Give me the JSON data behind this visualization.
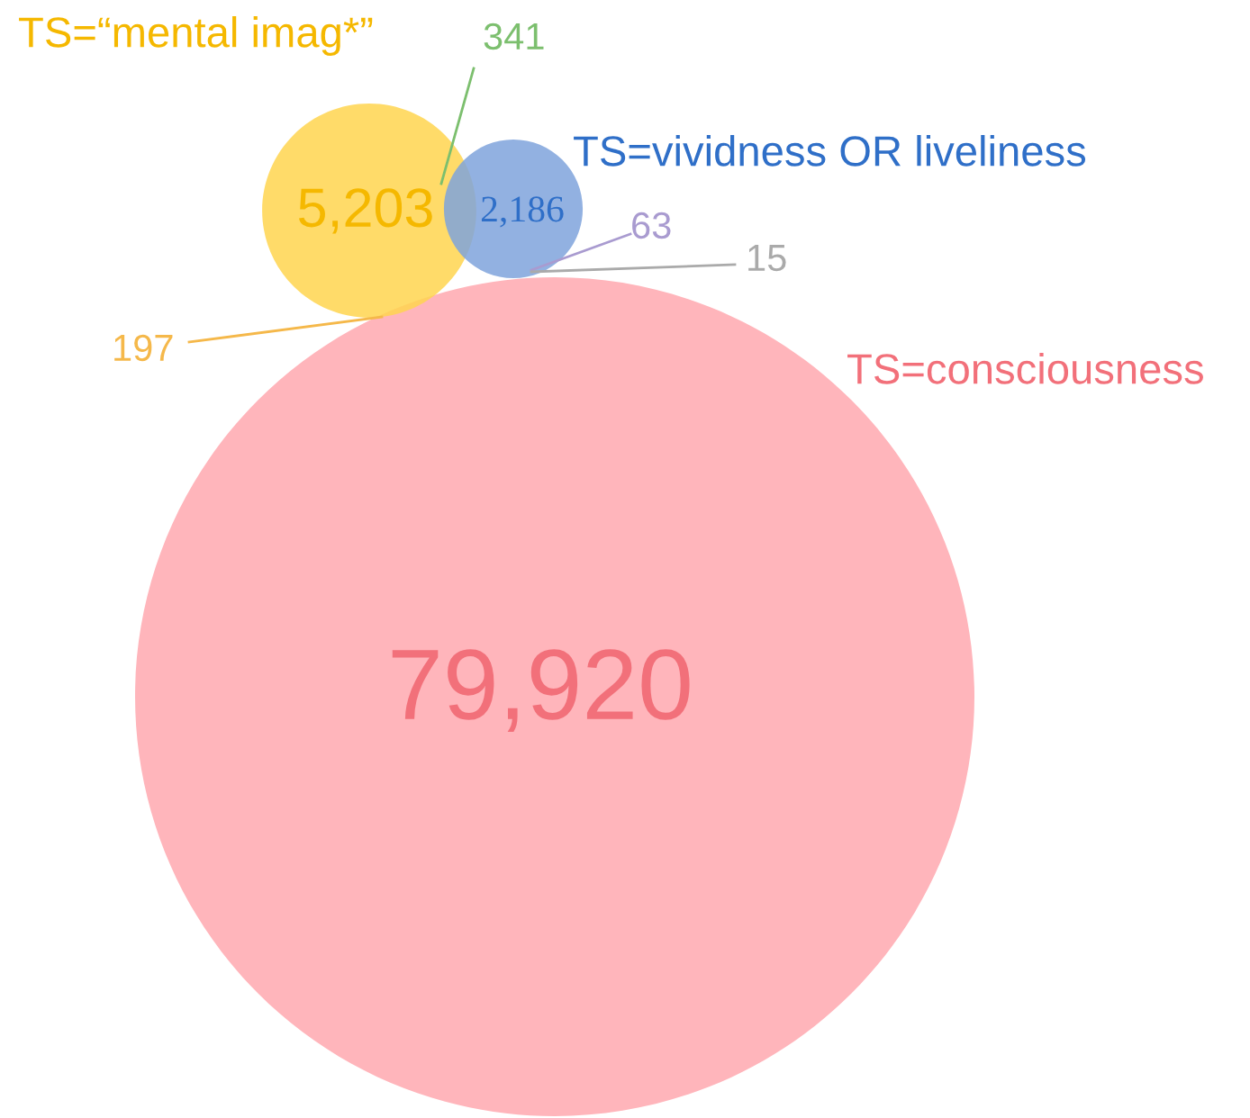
{
  "chart_data": {
    "type": "other",
    "categories": [
      "TS=“mental imag*”",
      "TS=vividness OR liveliness",
      "TS=consciousness"
    ],
    "values": [
      5203,
      2186,
      79920
    ],
    "value_labels": [
      "5,203",
      "2,186",
      "79,920"
    ],
    "colors": [
      "#ffd54f",
      "#7fa3dc",
      "#ffb5bb"
    ],
    "annotations": [
      "341",
      "197",
      "63",
      "15"
    ]
  }
}
